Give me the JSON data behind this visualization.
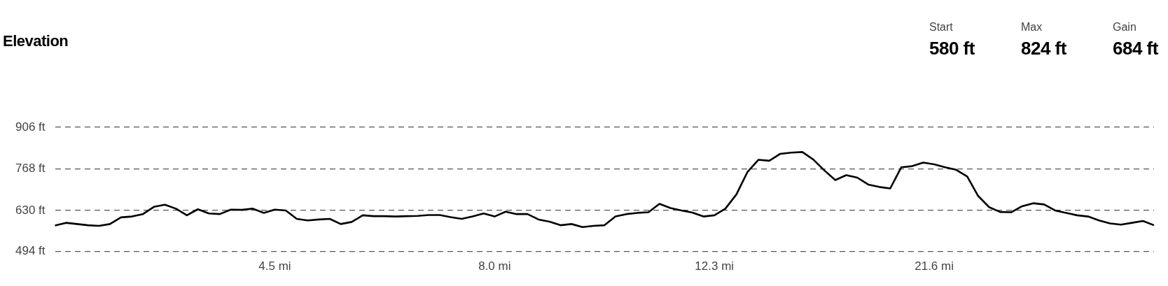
{
  "chart_data": {
    "type": "line",
    "title": "Elevation",
    "annotations": [
      "Start",
      "580 ft",
      "Max",
      "824 ft",
      "Gain",
      "684 ft"
    ],
    "categories": [
      null,
      null,
      null,
      null,
      null,
      null,
      null,
      null,
      null,
      null,
      null,
      null,
      null,
      null,
      null,
      null,
      null,
      null,
      null,
      null,
      "4.5 mi",
      null,
      null,
      null,
      null,
      null,
      null,
      null,
      null,
      null,
      null,
      null,
      null,
      null,
      null,
      null,
      null,
      null,
      null,
      null,
      "8.0 mi",
      null,
      null,
      null,
      null,
      null,
      null,
      null,
      null,
      null,
      null,
      null,
      null,
      null,
      null,
      null,
      null,
      null,
      null,
      null,
      "12.3 mi",
      null,
      null,
      null,
      null,
      null,
      null,
      null,
      null,
      null,
      null,
      null,
      null,
      null,
      null,
      null,
      null,
      null,
      null,
      null,
      "21.6 mi",
      null,
      null,
      null,
      null,
      null,
      null,
      null,
      null,
      null,
      null,
      null,
      null,
      null,
      null,
      null,
      null,
      null,
      null,
      null,
      null
    ],
    "series": [
      {
        "color": "#000000",
        "values": [
          580,
          589,
          585,
          581,
          579,
          585,
          607,
          610,
          618,
          642,
          649,
          636,
          614,
          634,
          620,
          618,
          633,
          632,
          636,
          622,
          633,
          630,
          602,
          597,
          600,
          602,
          585,
          592,
          614,
          611,
          611,
          610,
          611,
          612,
          615,
          615,
          608,
          602,
          610,
          620,
          610,
          626,
          618,
          618,
          600,
          593,
          581,
          585,
          575,
          579,
          581,
          610,
          618,
          622,
          624,
          652,
          638,
          630,
          623,
          610,
          614,
          636,
          683,
          757,
          798,
          795,
          818,
          822,
          824,
          799,
          763,
          731,
          747,
          739,
          716,
          708,
          703,
          773,
          777,
          789,
          783,
          773,
          765,
          743,
          678,
          641,
          625,
          624,
          644,
          654,
          650,
          630,
          622,
          614,
          610,
          597,
          587,
          583,
          589,
          595,
          581
        ]
      }
    ],
    "ylim": [
      494,
      906
    ],
    "yticks": [
      {
        "value": 494,
        "label": "494 ft"
      },
      {
        "value": 630,
        "label": "630 ft"
      },
      {
        "value": 768,
        "label": "768 ft"
      },
      {
        "value": 906,
        "label": "906 ft"
      }
    ],
    "grid": "y",
    "line_style": "solid",
    "marker": "none",
    "legend": false
  }
}
